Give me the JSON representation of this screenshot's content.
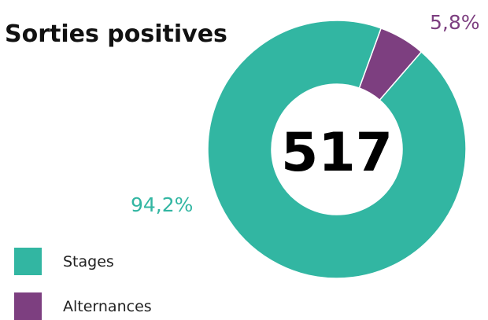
{
  "chart_data": {
    "type": "pie",
    "variant": "donut",
    "title": "Sorties positives",
    "center_label": "517",
    "categories": [
      "Stages",
      "Alternances"
    ],
    "values": [
      94.2,
      5.8
    ],
    "value_labels": [
      "94,2%",
      "5,8%"
    ],
    "colors": [
      "#32b6a2",
      "#7d3f80"
    ],
    "legend_position": "bottom-left",
    "start_angle_deg": 20
  }
}
